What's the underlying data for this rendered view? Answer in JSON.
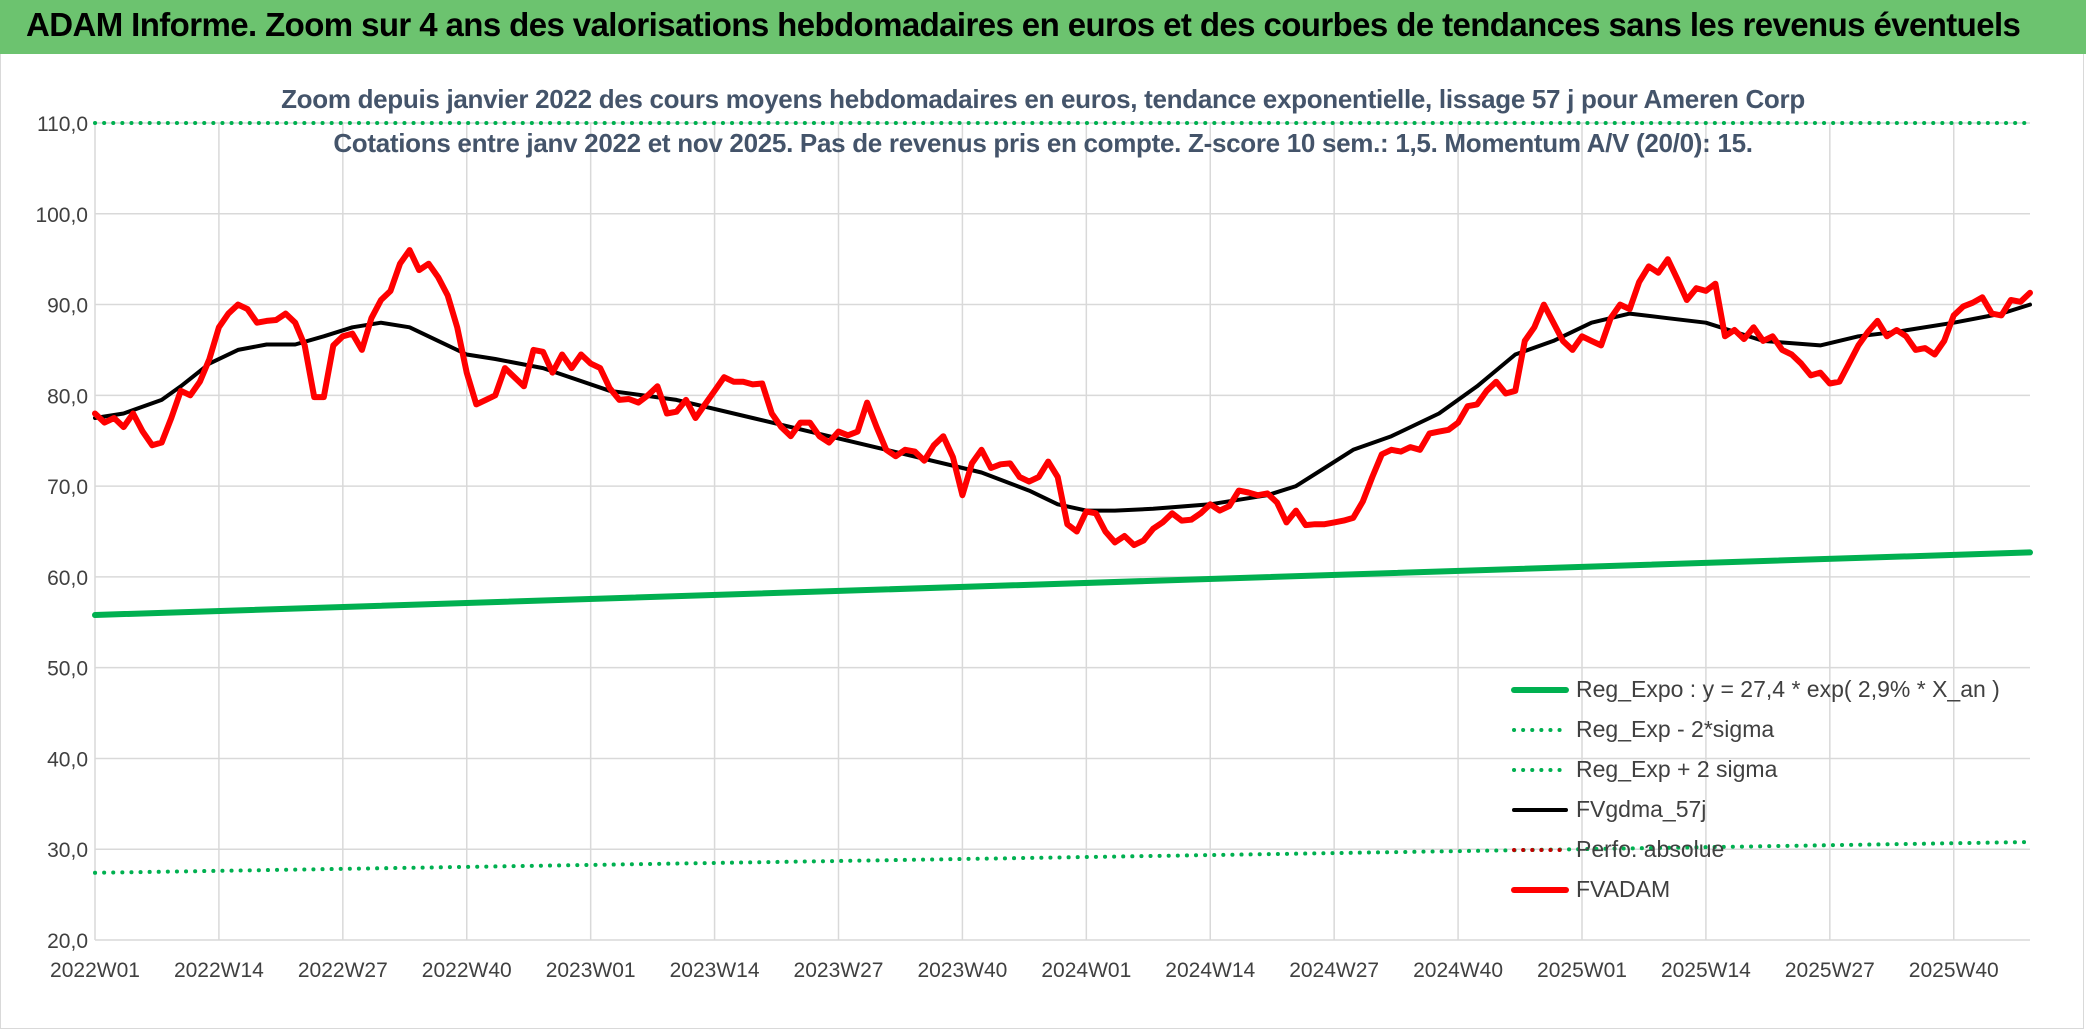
{
  "banner": {
    "title": "ADAM Informe. Zoom sur 4 ans des valorisations hebdomadaires en euros et des courbes de tendances sans les revenus éventuels",
    "color": "#6cc36f"
  },
  "chart_data": {
    "type": "line",
    "title": "Zoom depuis janvier 2022 des cours moyens hebdomadaires en euros, tendance exponentielle, lissage 57 j pour Ameren Corp",
    "subtitle": "Cotations entre janv 2022 et nov 2025. Pas de revenus pris en compte. Z-score 10 sem.: 1,5. Momentum A/V (20/0): 15.",
    "xlabel": "",
    "ylabel": "",
    "ylim": [
      20,
      110
    ],
    "yticks": [
      "20,0",
      "30,0",
      "40,0",
      "50,0",
      "60,0",
      "70,0",
      "80,0",
      "90,0",
      "100,0",
      "110,0"
    ],
    "x_range_weeks": [
      1,
      204
    ],
    "x_ticks": [
      {
        "label": "2022W01",
        "week": 1
      },
      {
        "label": "2022W14",
        "week": 14
      },
      {
        "label": "2022W27",
        "week": 27
      },
      {
        "label": "2022W40",
        "week": 40
      },
      {
        "label": "2023W01",
        "week": 53
      },
      {
        "label": "2023W14",
        "week": 66
      },
      {
        "label": "2023W27",
        "week": 79
      },
      {
        "label": "2023W40",
        "week": 92
      },
      {
        "label": "2024W01",
        "week": 105
      },
      {
        "label": "2024W14",
        "week": 118
      },
      {
        "label": "2024W27",
        "week": 131
      },
      {
        "label": "2024W40",
        "week": 144
      },
      {
        "label": "2025W01",
        "week": 157
      },
      {
        "label": "2025W14",
        "week": 170
      },
      {
        "label": "2025W27",
        "week": 183
      },
      {
        "label": "2025W40",
        "week": 196
      }
    ],
    "grid": true,
    "legend_position": "bottom-right",
    "series": [
      {
        "name": "Reg_Expo : y = 27,4 * exp( 2,9% *  X_an )",
        "color": "#00b050",
        "style": "solid",
        "width": 6,
        "x": [
          1,
          204
        ],
        "y": [
          55.8,
          62.7
        ]
      },
      {
        "name": "Reg_Exp - 2*sigma",
        "color": "#00b050",
        "style": "dotted",
        "width": 4,
        "x": [
          1,
          204
        ],
        "y": [
          27.4,
          30.8
        ]
      },
      {
        "name": "Reg_Exp + 2 sigma",
        "color": "#00b050",
        "style": "dotted",
        "width": 4,
        "x": [
          1,
          204
        ],
        "y": [
          110.0,
          110.0
        ]
      },
      {
        "name": "FVgdma_57j",
        "color": "#000000",
        "style": "solid",
        "width": 4,
        "x": [
          1,
          4,
          8,
          10,
          13,
          16,
          19,
          22,
          25,
          28,
          31,
          34,
          37,
          40,
          43,
          48,
          55,
          62,
          70,
          78,
          86,
          94,
          99,
          102,
          105,
          108,
          112,
          118,
          124,
          127,
          130,
          133,
          137,
          142,
          146,
          150,
          154,
          158,
          162,
          166,
          170,
          176,
          182,
          186,
          190,
          196,
          201,
          204
        ],
        "y": [
          77.5,
          78.0,
          79.5,
          81.0,
          83.5,
          85.0,
          85.6,
          85.6,
          86.5,
          87.5,
          88.0,
          87.5,
          86.0,
          84.5,
          84.0,
          83.0,
          80.5,
          79.5,
          77.5,
          75.5,
          73.5,
          71.5,
          69.5,
          68.0,
          67.3,
          67.3,
          67.5,
          68.0,
          69.0,
          70.0,
          72.0,
          74.0,
          75.5,
          78.0,
          81.0,
          84.5,
          86.0,
          88.0,
          89.0,
          88.5,
          88.0,
          86.0,
          85.5,
          86.5,
          87.0,
          88.0,
          89.0,
          90.0
        ]
      },
      {
        "name": "Perfo. absolue",
        "color": "#c00000",
        "style": "dotted",
        "width": 4,
        "x": [],
        "y": []
      },
      {
        "name": "FVADAM",
        "color": "#ff0000",
        "style": "solid",
        "width": 6,
        "x": [
          1,
          2,
          3,
          4,
          5,
          6,
          7,
          8,
          9,
          10,
          11,
          12,
          13,
          14,
          15,
          16,
          17,
          18,
          19,
          20,
          21,
          22,
          23,
          24,
          25,
          26,
          27,
          28,
          29,
          30,
          31,
          32,
          33,
          34,
          35,
          36,
          37,
          38,
          39,
          40,
          41,
          42,
          43,
          44,
          45,
          46,
          47,
          48,
          49,
          50,
          51,
          52,
          53,
          54,
          55,
          56,
          57,
          58,
          59,
          60,
          61,
          62,
          63,
          64,
          65,
          66,
          67,
          68,
          69,
          70,
          71,
          72,
          73,
          74,
          75,
          76,
          77,
          78,
          79,
          80,
          81,
          82,
          83,
          84,
          85,
          86,
          87,
          88,
          89,
          90,
          91,
          92,
          93,
          94,
          95,
          96,
          97,
          98,
          99,
          100,
          101,
          102,
          103,
          104,
          105,
          106,
          107,
          108,
          109,
          110,
          111,
          112,
          113,
          114,
          115,
          116,
          117,
          118,
          119,
          120,
          121,
          122,
          123,
          124,
          125,
          126,
          127,
          128,
          129,
          130,
          131,
          132,
          133,
          134,
          135,
          136,
          137,
          138,
          139,
          140,
          141,
          142,
          143,
          144,
          145,
          146,
          147,
          148,
          149,
          150,
          151,
          152,
          153,
          154,
          155,
          156,
          157,
          158,
          159,
          160,
          161,
          162,
          163,
          164,
          165,
          166,
          167,
          168,
          169,
          170,
          171,
          172,
          173,
          174,
          175,
          176,
          177,
          178,
          179,
          180,
          181,
          182,
          183,
          184,
          185,
          186,
          187,
          188,
          189,
          190,
          191,
          192,
          193,
          194,
          195,
          196,
          197,
          198,
          199,
          200,
          201,
          202,
          203,
          204
        ],
        "y": [
          78.0,
          77.0,
          77.5,
          76.5,
          78.0,
          76.0,
          74.5,
          74.8,
          77.5,
          80.5,
          80.0,
          81.5,
          84.0,
          87.5,
          89.0,
          90.0,
          89.5,
          88.0,
          88.2,
          88.3,
          89.0,
          88.0,
          85.5,
          79.8,
          79.8,
          85.5,
          86.5,
          86.8,
          85.0,
          88.5,
          90.5,
          91.5,
          94.5,
          96.0,
          93.8,
          94.5,
          93.0,
          91.0,
          87.5,
          82.5,
          79.0,
          79.5,
          80.0,
          83.0,
          82.0,
          81.0,
          85.0,
          84.8,
          82.5,
          84.5,
          83.0,
          84.5,
          83.5,
          83.0,
          80.8,
          79.5,
          79.6,
          79.2,
          80.0,
          81.0,
          78.0,
          78.2,
          79.5,
          77.5,
          79.0,
          80.5,
          82.0,
          81.5,
          81.5,
          81.2,
          81.3,
          78.0,
          76.5,
          75.5,
          77.0,
          77.0,
          75.5,
          74.8,
          76.0,
          75.6,
          76.0,
          79.2,
          76.5,
          74.0,
          73.3,
          74.0,
          73.8,
          72.8,
          74.5,
          75.5,
          73.2,
          69.0,
          72.5,
          74.0,
          72.0,
          72.4,
          72.5,
          71.0,
          70.5,
          71.0,
          72.7,
          71.0,
          65.8,
          65.0,
          67.2,
          67.0,
          65.0,
          63.8,
          64.5,
          63.5,
          64.0,
          65.3,
          66.0,
          67.0,
          66.2,
          66.3,
          67.0,
          68.0,
          67.3,
          67.8,
          69.5,
          69.3,
          69.0,
          69.2,
          68.2,
          66.0,
          67.3,
          65.7,
          65.8,
          65.8,
          66.0,
          66.2,
          66.5,
          68.3,
          71.0,
          73.5,
          74.0,
          73.8,
          74.3,
          74.0,
          75.8,
          76.0,
          76.2,
          77.0,
          78.8,
          79.0,
          80.5,
          81.5,
          80.2,
          80.5,
          86.0,
          87.5,
          90.0,
          88.0,
          86.0,
          85.0,
          86.5,
          86.0,
          85.5,
          88.5,
          90.0,
          89.5,
          92.5,
          94.2,
          93.5,
          95.0,
          92.8,
          90.5,
          91.8,
          91.5,
          92.3,
          86.5,
          87.2,
          86.2,
          87.5,
          86.0,
          86.5,
          85.0,
          84.5,
          83.5,
          82.2,
          82.5,
          81.3,
          81.5,
          83.5,
          85.5,
          87.0,
          88.2,
          86.5,
          87.2,
          86.5,
          85.0,
          85.2,
          84.5,
          86.0,
          88.8,
          89.8,
          90.2,
          90.8,
          89.0,
          88.8,
          90.5,
          90.3,
          91.3
        ]
      }
    ]
  }
}
